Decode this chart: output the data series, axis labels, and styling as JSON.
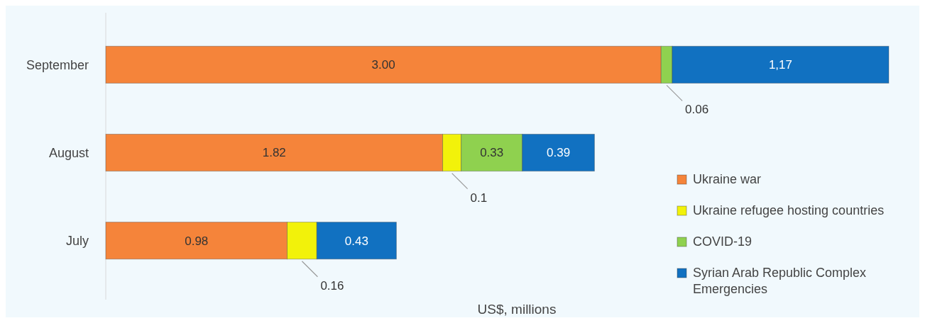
{
  "chart_data": {
    "type": "bar",
    "orientation": "horizontal",
    "stacked": true,
    "xlabel": "US$, millions",
    "categories": [
      "September",
      "August",
      "July"
    ],
    "legend": "right",
    "series": [
      {
        "name": "Ukraine war",
        "color": "#f5843a",
        "values": [
          3.0,
          1.82,
          0.98
        ],
        "value_labels": [
          "3.00",
          "1.82",
          "0.98"
        ]
      },
      {
        "name": "Ukraine refugee hosting countries",
        "color": "#f2f20a",
        "values": [
          null,
          0.1,
          0.16
        ],
        "value_labels": [
          null,
          "0.1",
          "0.16"
        ]
      },
      {
        "name": "COVID-19",
        "color": "#8fd14f",
        "values": [
          0.06,
          0.33,
          null
        ],
        "value_labels": [
          "0.06",
          "0.33",
          null
        ]
      },
      {
        "name": "Syrian Arab Republic Complex Emergencies",
        "color": "#1171c1",
        "values": [
          1.17,
          0.39,
          0.43
        ],
        "value_labels": [
          "1,17",
          "0.39",
          "0.43"
        ]
      }
    ]
  }
}
